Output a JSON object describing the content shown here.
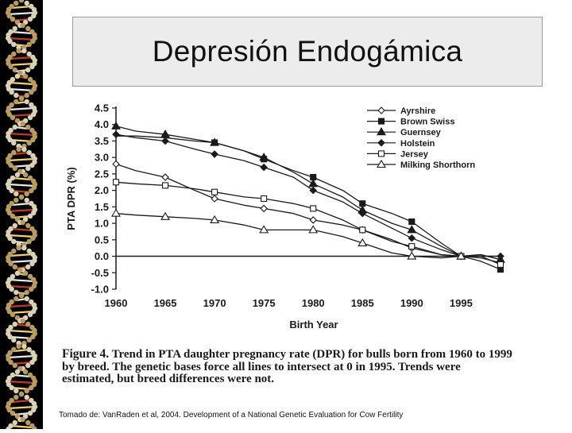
{
  "slide": {
    "title": "Depresión Endogámica",
    "citation": "Tomado de: VanRaden et al, 2004.  Development of a National Genetic Evaluation for Cow Fertility",
    "caption_label": "Figure 4.",
    "caption_text": " Trend in PTA daughter pregnancy rate (DPR) for bulls born from 1960 to 1999 by breed. The genetic bases force all lines to intersect at 0 in 1995. Trends were estimated, but breed differences were not."
  },
  "colors": {
    "line": "#1a1a1a",
    "strip": "#000000",
    "title_bg": "#ececec"
  },
  "chart_data": {
    "type": "line",
    "title": "",
    "xlabel": "Birth Year",
    "ylabel": "PTA DPR (%)",
    "xlim": [
      1960,
      1999
    ],
    "ylim": [
      -1.0,
      4.5
    ],
    "xticks": [
      1960,
      1965,
      1970,
      1975,
      1980,
      1985,
      1990,
      1995
    ],
    "xtick_labels": [
      "1960",
      "1965",
      "1970",
      "1975",
      "1980",
      "1985",
      "1990",
      "1995"
    ],
    "yticks": [
      -1.0,
      -0.5,
      0.0,
      0.5,
      1.0,
      1.5,
      2.0,
      2.5,
      3.0,
      3.5,
      4.0,
      4.5
    ],
    "ytick_labels": [
      "-1.0",
      "-0.5",
      "0.0",
      "0.5",
      "1.0",
      "1.5",
      "2.0",
      "2.5",
      "3.0",
      "3.5",
      "4.0",
      "4.5"
    ],
    "legend_position": "top-right",
    "series": [
      {
        "name": "Ayrshire",
        "marker": "diamond-open",
        "x": [
          1960,
          1962,
          1965,
          1968,
          1970,
          1973,
          1975,
          1978,
          1980,
          1983,
          1985,
          1988,
          1990,
          1993,
          1995,
          1997,
          1999
        ],
        "y": [
          2.8,
          2.6,
          2.4,
          2.0,
          1.75,
          1.55,
          1.45,
          1.3,
          1.1,
          0.95,
          0.8,
          0.5,
          0.25,
          0.05,
          0.0,
          -0.05,
          -0.2
        ],
        "markers_at": [
          1960,
          1965,
          1970,
          1975,
          1980,
          1985,
          1990,
          1995
        ]
      },
      {
        "name": "Brown Swiss",
        "marker": "square-filled",
        "x": [
          1960,
          1962,
          1965,
          1968,
          1970,
          1973,
          1975,
          1978,
          1980,
          1983,
          1985,
          1988,
          1990,
          1993,
          1995,
          1997,
          1999
        ],
        "y": [
          3.65,
          3.65,
          3.6,
          3.5,
          3.45,
          3.2,
          2.95,
          2.6,
          2.4,
          2.0,
          1.6,
          1.3,
          1.05,
          0.4,
          0.0,
          -0.15,
          -0.4
        ],
        "markers_at": [
          1970,
          1975,
          1980,
          1985,
          1990,
          1995,
          1999
        ]
      },
      {
        "name": "Guernsey",
        "marker": "triangle-filled",
        "x": [
          1960,
          1962,
          1965,
          1968,
          1970,
          1973,
          1975,
          1978,
          1980,
          1983,
          1985,
          1988,
          1990,
          1993,
          1995,
          1997,
          1999
        ],
        "y": [
          3.95,
          3.8,
          3.7,
          3.55,
          3.45,
          3.2,
          3.0,
          2.55,
          2.2,
          1.8,
          1.4,
          1.0,
          0.8,
          0.3,
          0.0,
          0.05,
          -0.1
        ],
        "markers_at": [
          1960,
          1965,
          1970,
          1975,
          1980,
          1985,
          1990,
          1995,
          1999
        ]
      },
      {
        "name": "Holstein",
        "marker": "diamond-filled",
        "x": [
          1960,
          1962,
          1965,
          1968,
          1970,
          1973,
          1975,
          1978,
          1980,
          1983,
          1985,
          1988,
          1990,
          1993,
          1995,
          1997,
          1999
        ],
        "y": [
          3.7,
          3.6,
          3.5,
          3.25,
          3.1,
          2.9,
          2.7,
          2.4,
          2.0,
          1.65,
          1.3,
          0.85,
          0.55,
          0.2,
          0.0,
          0.0,
          0.0
        ],
        "markers_at": [
          1960,
          1965,
          1970,
          1975,
          1980,
          1985,
          1990,
          1995,
          1999
        ]
      },
      {
        "name": "Jersey",
        "marker": "square-open",
        "x": [
          1960,
          1962,
          1965,
          1968,
          1970,
          1973,
          1975,
          1978,
          1980,
          1983,
          1985,
          1988,
          1990,
          1993,
          1995,
          1997,
          1999
        ],
        "y": [
          2.25,
          2.2,
          2.15,
          2.05,
          1.95,
          1.8,
          1.75,
          1.6,
          1.45,
          1.1,
          0.8,
          0.45,
          0.3,
          0.05,
          0.0,
          0.0,
          -0.25
        ],
        "markers_at": [
          1960,
          1965,
          1970,
          1975,
          1980,
          1985,
          1990,
          1995,
          1999
        ]
      },
      {
        "name": "Milking Shorthorn",
        "marker": "triangle-open",
        "x": [
          1960,
          1962,
          1965,
          1968,
          1970,
          1973,
          1975,
          1978,
          1980,
          1983,
          1985,
          1988,
          1990,
          1993,
          1995,
          1997,
          1999
        ],
        "y": [
          1.3,
          1.25,
          1.2,
          1.15,
          1.1,
          0.95,
          0.8,
          0.8,
          0.8,
          0.6,
          0.4,
          0.1,
          0.0,
          -0.05,
          0.0,
          0.05,
          -0.1
        ],
        "markers_at": [
          1960,
          1965,
          1970,
          1975,
          1980,
          1985,
          1990,
          1995
        ]
      }
    ]
  }
}
